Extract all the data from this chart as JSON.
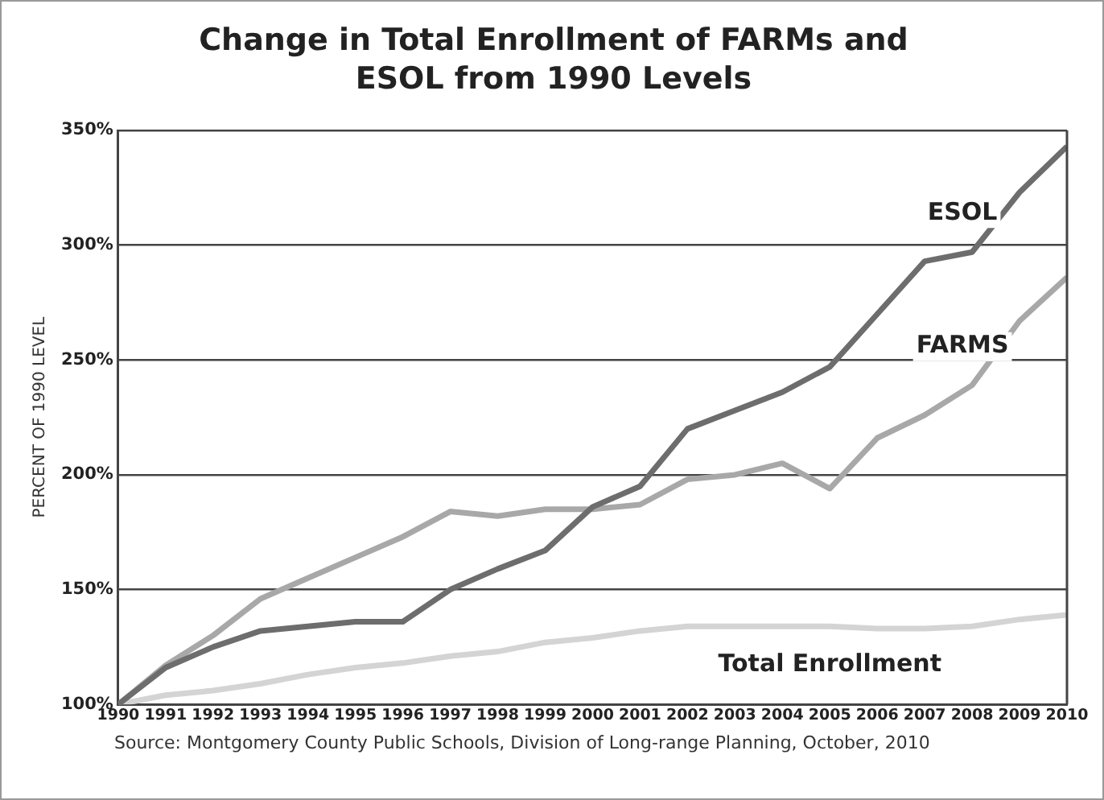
{
  "chart_data": {
    "type": "line",
    "title": "Change in Total Enrollment of FARMs and ESOL from 1990 Levels",
    "ylabel": "PERCENT OF 1990 LEVEL",
    "x": [
      1990,
      1991,
      1992,
      1993,
      1994,
      1995,
      1996,
      1997,
      1998,
      1999,
      2000,
      2001,
      2002,
      2003,
      2004,
      2005,
      2006,
      2007,
      2008,
      2009,
      2010
    ],
    "series": [
      {
        "name": "ESOL",
        "color": "#6d6d6d",
        "values": [
          100,
          116,
          125,
          132,
          134,
          136,
          136,
          150,
          159,
          167,
          186,
          195,
          220,
          228,
          236,
          247,
          270,
          293,
          297,
          323,
          343
        ]
      },
      {
        "name": "FARMS",
        "color": "#a8a8a8",
        "values": [
          100,
          117,
          130,
          146,
          155,
          164,
          173,
          184,
          182,
          185,
          185,
          187,
          198,
          200,
          205,
          194,
          216,
          226,
          239,
          267,
          286
        ]
      },
      {
        "name": "Total Enrollment",
        "color": "#d4d4d4",
        "values": [
          100,
          104,
          106,
          109,
          113,
          116,
          118,
          121,
          123,
          127,
          129,
          132,
          134,
          134,
          134,
          134,
          133,
          133,
          134,
          137,
          139
        ]
      }
    ],
    "xlim": [
      1990,
      2010
    ],
    "xticks": [
      1990,
      1991,
      1992,
      1993,
      1994,
      1995,
      1996,
      1997,
      1998,
      1999,
      2000,
      2001,
      2002,
      2003,
      2004,
      2005,
      2006,
      2007,
      2008,
      2009,
      2010
    ],
    "ylim": [
      100,
      350
    ],
    "yticks": [
      {
        "value": 100,
        "label": "100%"
      },
      {
        "value": 150,
        "label": "150%"
      },
      {
        "value": 200,
        "label": "200%"
      },
      {
        "value": 250,
        "label": "250%"
      },
      {
        "value": 300,
        "label": "300%"
      },
      {
        "value": 350,
        "label": "350%"
      }
    ],
    "grid": "y",
    "legend": false,
    "marker": "none",
    "line_style": "solid",
    "annotations": [
      "Source: Montgomery County Public Schools, Division of Long-range Planning, October, 2010"
    ]
  }
}
